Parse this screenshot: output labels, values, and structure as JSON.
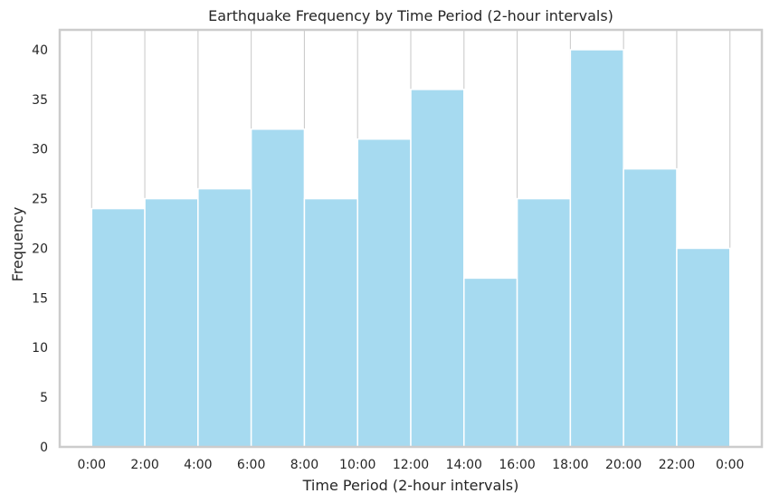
{
  "chart_data": {
    "type": "bar",
    "title": "Earthquake Frequency by Time Period (2-hour intervals)",
    "xlabel": "Time Period (2-hour intervals)",
    "ylabel": "Frequency",
    "bin_edges": [
      0,
      2,
      4,
      6,
      8,
      10,
      12,
      14,
      16,
      18,
      20,
      22,
      24
    ],
    "x_tick_labels": [
      "0:00",
      "2:00",
      "4:00",
      "6:00",
      "8:00",
      "10:00",
      "12:00",
      "14:00",
      "16:00",
      "18:00",
      "20:00",
      "22:00",
      "0:00"
    ],
    "values": [
      24,
      25,
      26,
      32,
      25,
      31,
      36,
      17,
      25,
      40,
      28,
      20
    ],
    "y_ticks": [
      0,
      5,
      10,
      15,
      20,
      25,
      30,
      35,
      40
    ],
    "xlim": [
      -1.2,
      25.2
    ],
    "ylim": [
      0,
      42
    ],
    "grid": true,
    "bar_color": "#a6daf0",
    "grid_color": "#cccccc",
    "spine_color": "#cccccc"
  }
}
